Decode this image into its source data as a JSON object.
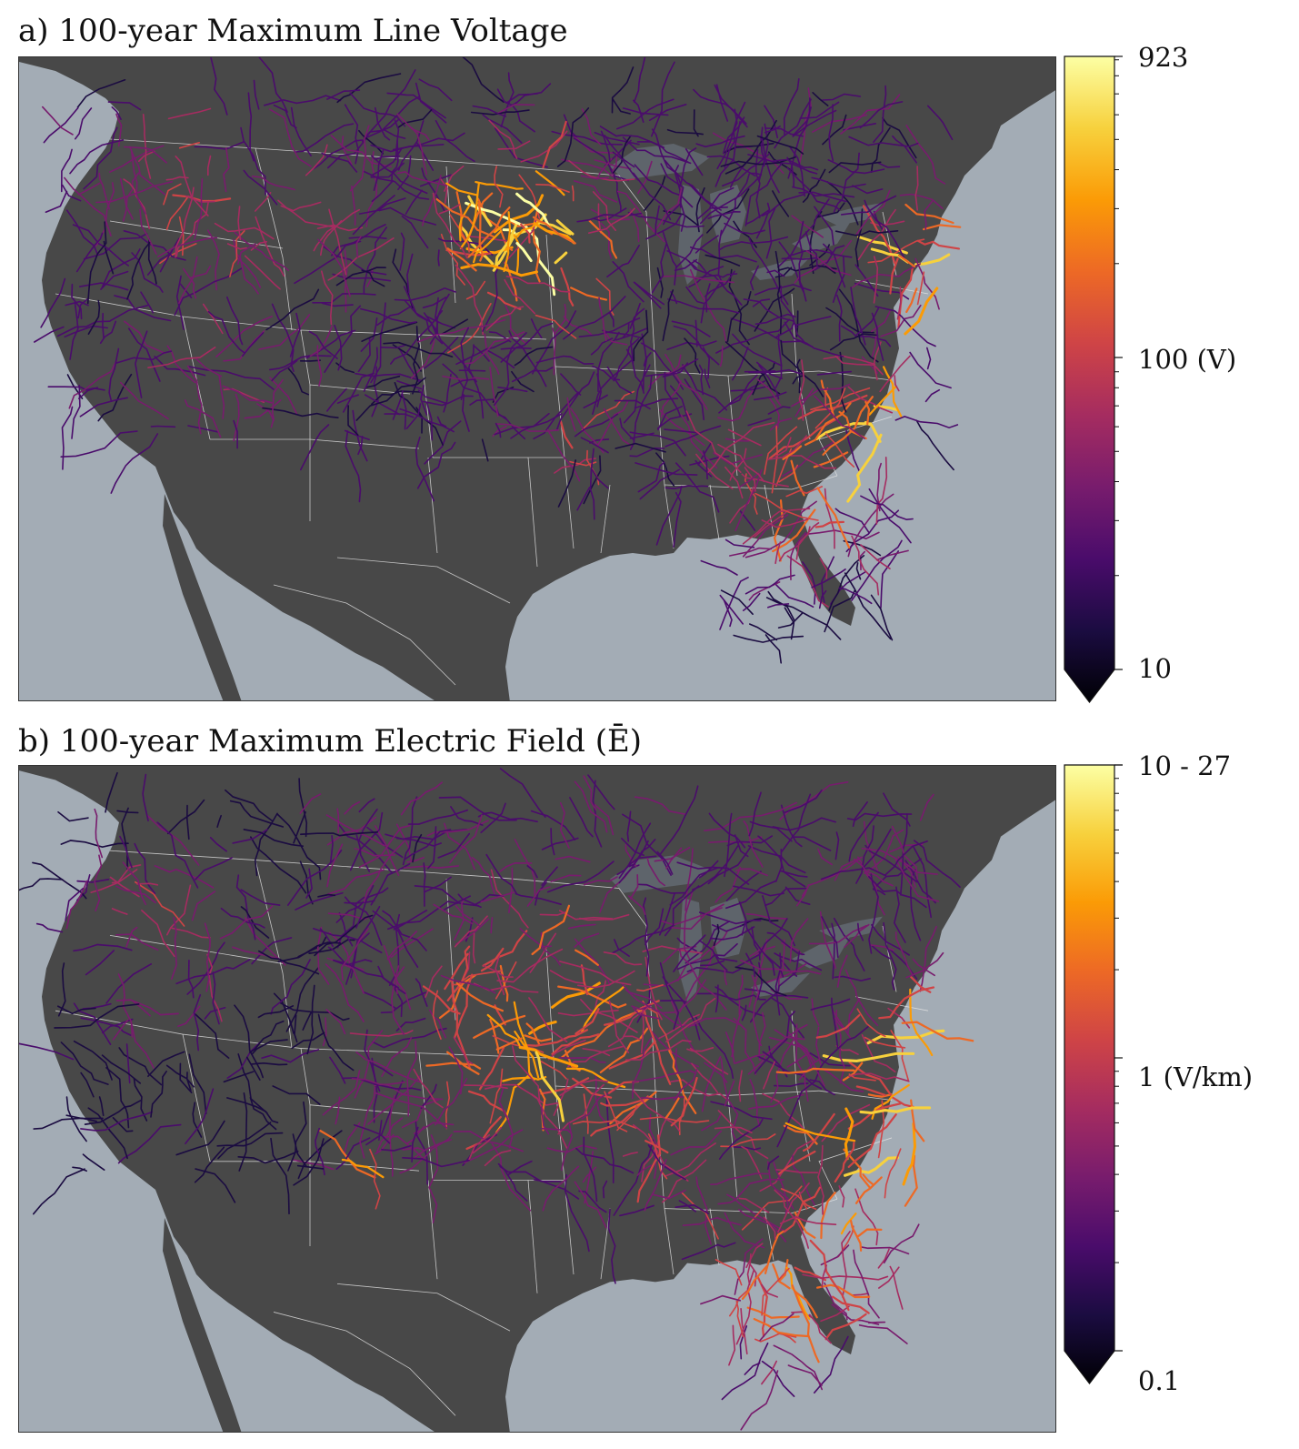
{
  "panels": [
    {
      "id": "a",
      "title": "a) 100-year Maximum Line Voltage",
      "colorbar": {
        "colormap": "inferno",
        "scale": "log",
        "min": 10,
        "max": 923,
        "extend": "min",
        "ticks": [
          {
            "value": 923,
            "label": "923"
          },
          {
            "value": 100,
            "label": "100 (V)"
          },
          {
            "value": 10,
            "label": "10"
          }
        ]
      },
      "hotspots": [
        "Minnesota / Dakotas",
        "New England coast",
        "Virginia",
        "Carolinas"
      ]
    },
    {
      "id": "b",
      "title": "b) 100-year Maximum Electric Field (Ē)",
      "colorbar": {
        "colormap": "inferno",
        "scale": "log",
        "min": 0.1,
        "max": 10,
        "extend": "min",
        "ticks": [
          {
            "value": 10,
            "label": "10 - 27"
          },
          {
            "value": 1,
            "label": "1 (V/km)"
          },
          {
            "value": 0.1,
            "label": "0.1"
          }
        ]
      },
      "hotspots": [
        "Northeast corridor",
        "Virginia",
        "Carolinas",
        "Upper Midwest",
        "Colorado"
      ]
    }
  ],
  "colors": {
    "ocean": "#a3acb5",
    "land": "#484848",
    "lakes": "#5e646b",
    "borders": "#e6e6e6"
  }
}
